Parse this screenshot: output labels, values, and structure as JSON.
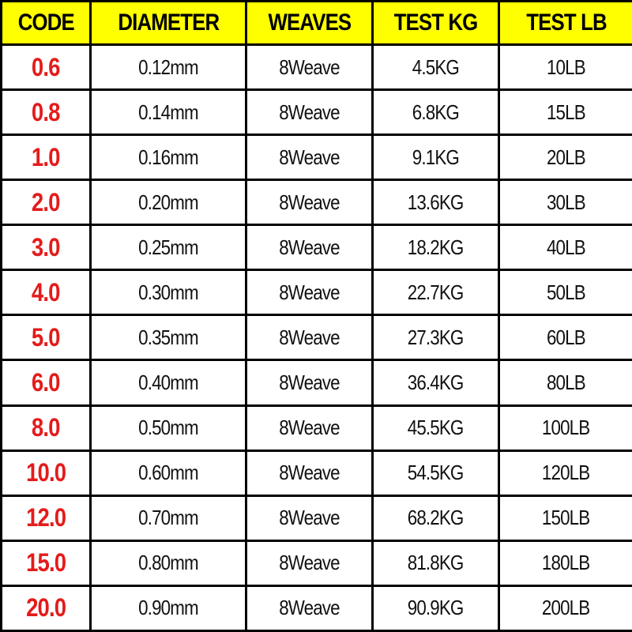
{
  "table": {
    "header": [
      "CODE",
      "DIAMETER",
      "WEAVES",
      "TEST KG",
      "TEST LB"
    ],
    "rows": [
      [
        "0.6",
        "0.12mm",
        "8Weave",
        "4.5KG",
        "10LB"
      ],
      [
        "0.8",
        "0.14mm",
        "8Weave",
        "6.8KG",
        "15LB"
      ],
      [
        "1.0",
        "0.16mm",
        "8Weave",
        "9.1KG",
        "20LB"
      ],
      [
        "2.0",
        "0.20mm",
        "8Weave",
        "13.6KG",
        "30LB"
      ],
      [
        "3.0",
        "0.25mm",
        "8Weave",
        "18.2KG",
        "40LB"
      ],
      [
        "4.0",
        "0.30mm",
        "8Weave",
        "22.7KG",
        "50LB"
      ],
      [
        "5.0",
        "0.35mm",
        "8Weave",
        "27.3KG",
        "60LB"
      ],
      [
        "6.0",
        "0.40mm",
        "8Weave",
        "36.4KG",
        "80LB"
      ],
      [
        "8.0",
        "0.50mm",
        "8Weave",
        "45.5KG",
        "100LB"
      ],
      [
        "10.0",
        "0.60mm",
        "8Weave",
        "54.5KG",
        "120LB"
      ],
      [
        "12.0",
        "0.70mm",
        "8Weave",
        "68.2KG",
        "150LB"
      ],
      [
        "15.0",
        "0.80mm",
        "8Weave",
        "81.8KG",
        "180LB"
      ],
      [
        "20.0",
        "0.90mm",
        "8Weave",
        "90.9KG",
        "200LB"
      ]
    ]
  }
}
